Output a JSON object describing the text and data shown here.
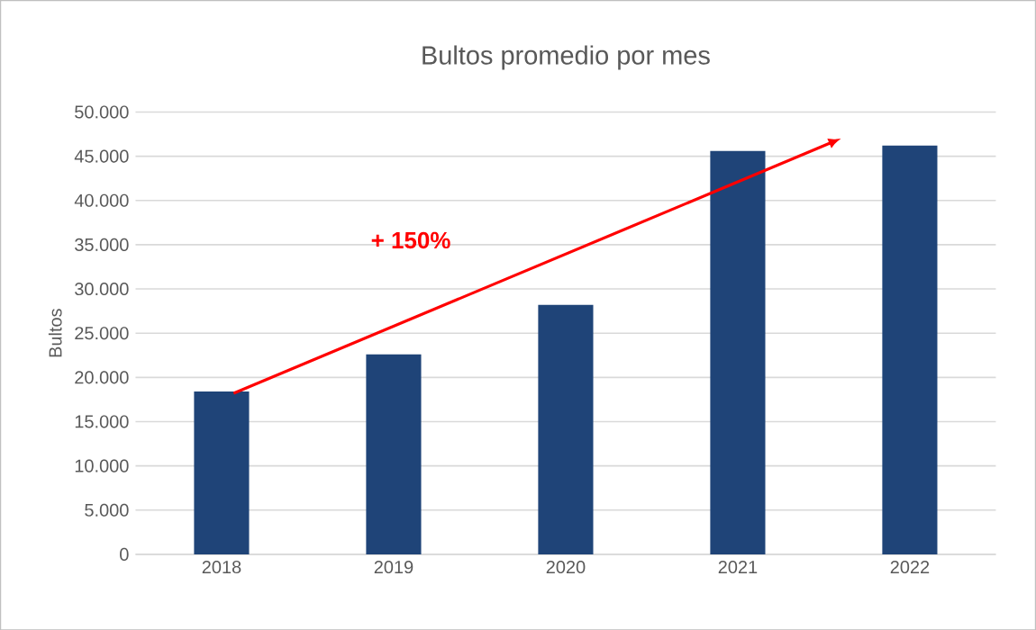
{
  "chart_data": {
    "type": "bar",
    "title": "Bultos promedio por mes",
    "ylabel": "Bultos",
    "categories": [
      "2018",
      "2019",
      "2020",
      "2021",
      "2022"
    ],
    "values": [
      18400,
      22600,
      28200,
      45600,
      46200
    ],
    "color": "#1f4478",
    "ylim": [
      0,
      50000
    ],
    "yticks": [
      {
        "value": 0,
        "label": "0"
      },
      {
        "value": 5000,
        "label": "5.000"
      },
      {
        "value": 10000,
        "label": "10.000"
      },
      {
        "value": 15000,
        "label": "15.000"
      },
      {
        "value": 20000,
        "label": "20.000"
      },
      {
        "value": 25000,
        "label": "25.000"
      },
      {
        "value": 30000,
        "label": "30.000"
      },
      {
        "value": 35000,
        "label": "35.000"
      },
      {
        "value": 40000,
        "label": "40.000"
      },
      {
        "value": 45000,
        "label": "45.000"
      },
      {
        "value": 50000,
        "label": "50.000"
      }
    ],
    "grid": "y",
    "annotations": [
      "+ 150%"
    ]
  }
}
